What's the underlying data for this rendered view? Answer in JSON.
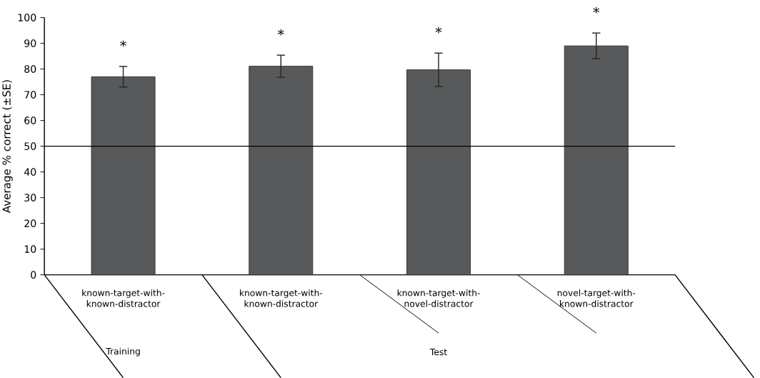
{
  "chart_data": {
    "type": "bar",
    "ylabel": "Average % correct (±SE)",
    "categories": [
      "known-target-with-known-distractor",
      "known-target-with-known-distractor",
      "known-target-with-novel-distractor",
      "novel-target-with-known-distractor"
    ],
    "values": [
      77,
      81.1,
      79.7,
      89
    ],
    "errors": [
      4,
      4.3,
      6.5,
      5
    ],
    "color": "#58595b",
    "value_labels": [
      "*",
      "*",
      "*",
      "*"
    ],
    "ylim": [
      0,
      100
    ],
    "yticks": [
      0,
      10,
      20,
      30,
      40,
      50,
      60,
      70,
      80,
      90,
      100
    ],
    "ref_lines": [
      {
        "axis": "y",
        "value": 50,
        "color": "#000000"
      }
    ],
    "annotations": [
      "Training",
      "Test"
    ],
    "grid": false
  }
}
